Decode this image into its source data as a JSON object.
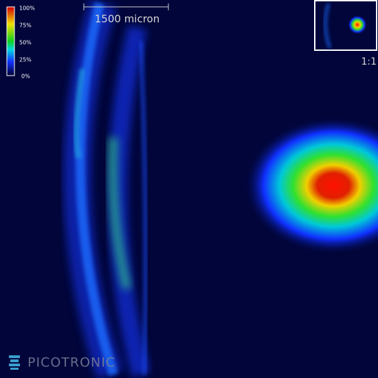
{
  "colorbar": {
    "labels": [
      "100%",
      "75%",
      "50%",
      "25%",
      "0%"
    ]
  },
  "scale_bar": {
    "label": "1500 micron"
  },
  "inset": {
    "label": "1:1"
  },
  "logo": {
    "text": "PICOTRONIC"
  }
}
